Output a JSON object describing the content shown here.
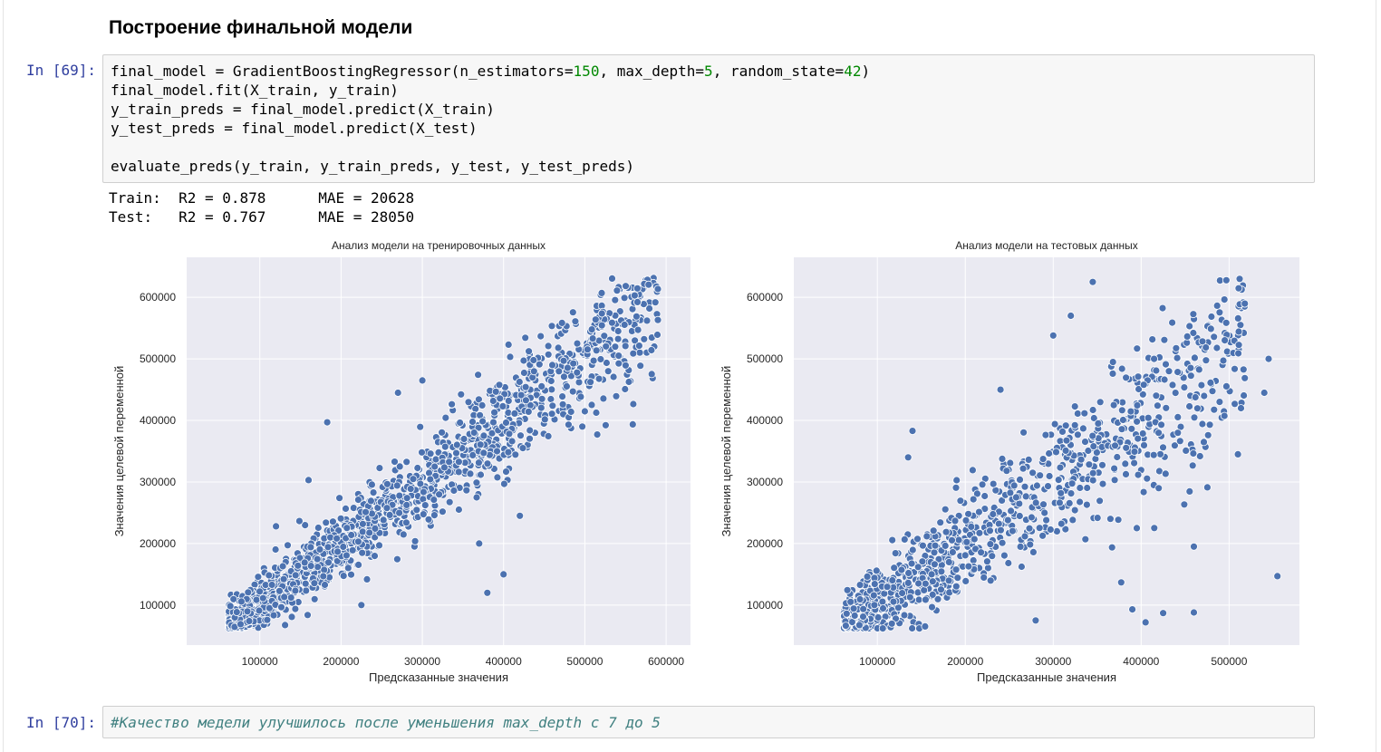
{
  "heading": "Построение финальной модели",
  "cells": [
    {
      "prompt": "In [69]:",
      "code_lines": [
        "final_model = GradientBoostingRegressor(n_estimators=150, max_depth=5, random_state=42)",
        "final_model.fit(X_train, y_train)",
        "y_train_preds = final_model.predict(X_train)",
        "y_test_preds = final_model.predict(X_test)",
        "",
        "evaluate_preds(y_train, y_train_preds, y_test, y_test_preds)"
      ],
      "output_lines": [
        "Train:  R2 = 0.878      MAE = 20628",
        "Test:   R2 = 0.767      MAE = 28050"
      ]
    },
    {
      "prompt": "In [70]:",
      "code_lines": [
        "#Качество медели улучшилось после уменьшения max_depth с 7 до 5"
      ]
    }
  ],
  "colors": {
    "plot_background": "#eaeaf2",
    "marker_fill": "#4c72b0",
    "marker_edge": "#ffffff",
    "grid": "#ffffff",
    "prompt": "#303f9f",
    "number": "#008800",
    "comment": "#408080"
  },
  "chart_data": [
    {
      "type": "scatter",
      "title": "Анализ модели на тренировочных данных",
      "xlabel": "Предсказанные значения",
      "ylabel": "Значения целевой переменной",
      "xlim": [
        10000,
        630000
      ],
      "ylim": [
        35000,
        665000
      ],
      "xticks": [
        100000,
        200000,
        300000,
        400000,
        500000,
        600000
      ],
      "yticks": [
        100000,
        200000,
        300000,
        400000,
        500000,
        600000
      ],
      "grid": true,
      "point_count_estimate": 1500,
      "trend": {
        "slope": 1.0,
        "intercept": 0,
        "spread_sd": 28000
      },
      "outliers": [
        [
          183000,
          397000
        ],
        [
          300000,
          465000
        ],
        [
          270000,
          445000
        ],
        [
          225000,
          100000
        ],
        [
          380000,
          120000
        ],
        [
          420000,
          245000
        ],
        [
          400000,
          150000
        ],
        [
          120000,
          228000
        ],
        [
          160000,
          303000
        ],
        [
          345000,
          255000
        ],
        [
          370000,
          200000
        ]
      ]
    },
    {
      "type": "scatter",
      "title": "Анализ модели на тестовых данных",
      "xlabel": "Предсказанные значения",
      "ylabel": "Значения целевой переменной",
      "xlim": [
        5000,
        580000
      ],
      "ylim": [
        35000,
        665000
      ],
      "xticks": [
        100000,
        200000,
        300000,
        400000,
        500000
      ],
      "yticks": [
        100000,
        200000,
        300000,
        400000,
        500000,
        600000
      ],
      "grid": true,
      "point_count_estimate": 1000,
      "trend": {
        "slope": 1.0,
        "intercept": 0,
        "spread_sd": 42000
      },
      "outliers": [
        [
          140000,
          383000
        ],
        [
          135000,
          340000
        ],
        [
          240000,
          450000
        ],
        [
          345000,
          625000
        ],
        [
          555000,
          147000
        ],
        [
          460000,
          88000
        ],
        [
          425000,
          87000
        ],
        [
          390000,
          93000
        ],
        [
          405000,
          72000
        ],
        [
          460000,
          195000
        ],
        [
          395000,
          225000
        ],
        [
          510000,
          345000
        ],
        [
          540000,
          445000
        ],
        [
          545000,
          500000
        ],
        [
          300000,
          538000
        ],
        [
          320000,
          570000
        ],
        [
          280000,
          75000
        ],
        [
          365000,
          240000
        ],
        [
          420000,
          290000
        ]
      ]
    }
  ]
}
